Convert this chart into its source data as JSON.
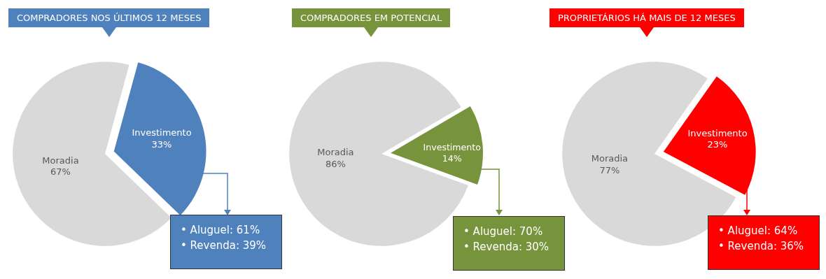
{
  "chart_data": [
    {
      "type": "pie",
      "title": "COMPRADORES NOS ÚLTIMOS 12 MESES",
      "categories": [
        "Moradia",
        "Investimento"
      ],
      "values": [
        67,
        33
      ],
      "value_labels": [
        "67%",
        "33%"
      ],
      "colors": [
        "#d9d9d9",
        "#4f81bd"
      ],
      "annotations": [
        "• Aluguel: 61%",
        "• Revenda: 39%"
      ]
    },
    {
      "type": "pie",
      "title": "COMPRADORES EM POTENCIAL",
      "categories": [
        "Moradia",
        "Investimento"
      ],
      "values": [
        86,
        14
      ],
      "value_labels": [
        "86%",
        "14%"
      ],
      "colors": [
        "#d9d9d9",
        "#77933c"
      ],
      "annotations": [
        "• Aluguel: 70%",
        "• Revenda: 30%"
      ]
    },
    {
      "type": "pie",
      "title": "PROPRIETÁRIOS HÁ MAIS DE 12 MESES",
      "categories": [
        "Moradia",
        "Investimento"
      ],
      "values": [
        77,
        23
      ],
      "value_labels": [
        "77%",
        "23%"
      ],
      "colors": [
        "#d9d9d9",
        "#ff0000"
      ],
      "annotations": [
        "• Aluguel: 64%",
        "• Revenda: 36%"
      ]
    }
  ]
}
